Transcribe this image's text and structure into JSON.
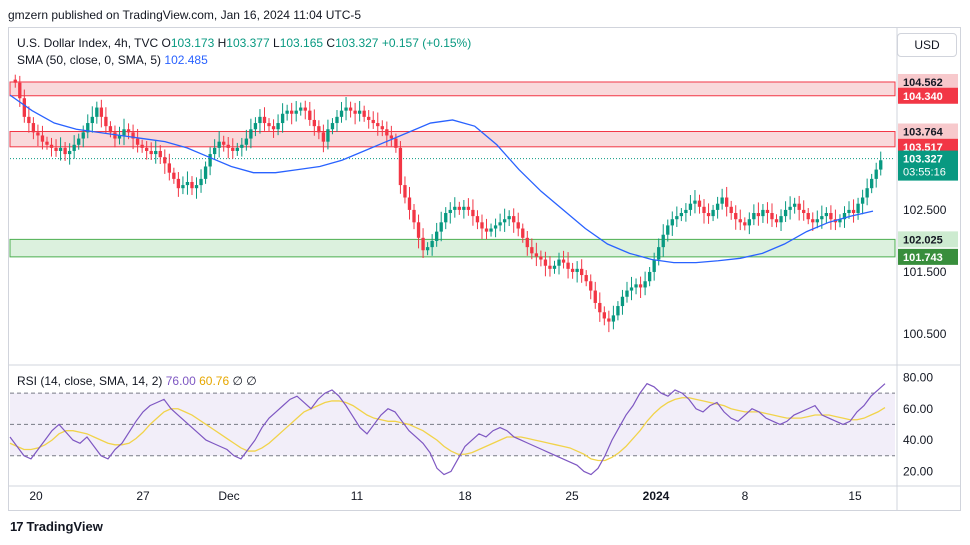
{
  "header": {
    "published": "gmzern published on TradingView.com, Jan 16, 2024 11:04 UTC-5"
  },
  "legend": {
    "symbol": "U.S. Dollar Index, 4h, TVC",
    "o_label": "O",
    "o_value": "103.173",
    "h_label": "H",
    "h_value": "103.377",
    "l_label": "L",
    "l_value": "103.165",
    "c_label": "C",
    "c_value": "103.327",
    "change": "+0.157 (+0.15%)",
    "sma_label": "SMA (50, close, 0, SMA, 5)",
    "sma_value": "102.485",
    "rsi_label": "RSI (14, close, SMA, 14, 2)",
    "rsi_value": "76.00",
    "rsi_sma_value": "60.76",
    "rsi_extra": "∅ ∅"
  },
  "currency_button": "USD",
  "footer": {
    "brand": "TradingView"
  },
  "colors": {
    "up": "#089981",
    "down": "#f23645",
    "sma": "#2962ff",
    "rsi": "#7e57c2",
    "rsi_sma": "#f1d34a",
    "resistance_fill": "#f7c9cc",
    "support_fill": "#cdebd0"
  },
  "chart_data": {
    "type": "candlestick",
    "price_axis": {
      "ticks": [
        100.5,
        101.5,
        102.5
      ],
      "tick_labels": [
        "100.500",
        "101.500",
        "102.500"
      ],
      "range": [
        100.0,
        105.4
      ]
    },
    "zones": [
      {
        "type": "resistance",
        "top": 104.562,
        "bottom": 104.34,
        "top_label": "104.562",
        "bottom_label": "104.340"
      },
      {
        "type": "resistance",
        "top": 103.764,
        "bottom": 103.517,
        "top_label": "103.764",
        "bottom_label": "103.517"
      },
      {
        "type": "support",
        "top": 102.025,
        "bottom": 101.743,
        "top_label": "102.025",
        "bottom_label": "101.743"
      }
    ],
    "last_price": {
      "value": 103.327,
      "label": "103.327",
      "countdown": "03:55:16"
    },
    "x_axis_labels": [
      "20",
      "27",
      "Dec",
      "11",
      "18",
      "25",
      "2024",
      "8",
      "15"
    ],
    "close_series_approx": [
      104.55,
      104.3,
      104.0,
      103.9,
      103.75,
      103.7,
      103.6,
      103.55,
      103.5,
      103.45,
      103.5,
      103.4,
      103.45,
      103.55,
      103.65,
      103.75,
      103.9,
      104.0,
      104.15,
      104.0,
      103.85,
      103.75,
      103.65,
      103.7,
      103.8,
      103.75,
      103.65,
      103.55,
      103.5,
      103.45,
      103.4,
      103.45,
      103.35,
      103.25,
      103.1,
      103.0,
      102.85,
      102.9,
      102.95,
      102.85,
      102.9,
      103.0,
      103.2,
      103.4,
      103.5,
      103.6,
      103.55,
      103.5,
      103.45,
      103.5,
      103.55,
      103.65,
      103.8,
      103.9,
      104.0,
      103.9,
      103.85,
      103.8,
      103.9,
      104.05,
      104.1,
      104.05,
      104.1,
      104.15,
      104.1,
      103.95,
      103.85,
      103.75,
      103.6,
      103.8,
      103.9,
      104.0,
      104.1,
      104.15,
      104.1,
      104.05,
      104.1,
      104.0,
      103.95,
      103.9,
      103.85,
      103.8,
      103.7,
      103.65,
      103.5,
      102.9,
      102.7,
      102.5,
      102.3,
      102.05,
      101.85,
      101.9,
      102.0,
      102.15,
      102.3,
      102.45,
      102.5,
      102.55,
      102.5,
      102.55,
      102.5,
      102.4,
      102.3,
      102.2,
      102.15,
      102.2,
      102.25,
      102.3,
      102.35,
      102.4,
      102.3,
      102.2,
      102.05,
      101.9,
      101.8,
      101.75,
      101.7,
      101.6,
      101.55,
      101.6,
      101.7,
      101.65,
      101.55,
      101.5,
      101.55,
      101.45,
      101.35,
      101.2,
      101.0,
      100.85,
      100.75,
      100.7,
      100.8,
      100.95,
      101.1,
      101.2,
      101.25,
      101.3,
      101.25,
      101.35,
      101.5,
      101.7,
      101.9,
      102.1,
      102.25,
      102.35,
      102.4,
      102.45,
      102.5,
      102.6,
      102.65,
      102.55,
      102.45,
      102.4,
      102.5,
      102.6,
      102.7,
      102.55,
      102.45,
      102.35,
      102.3,
      102.25,
      102.35,
      102.45,
      102.4,
      102.5,
      102.45,
      102.35,
      102.3,
      102.4,
      102.5,
      102.55,
      102.6,
      102.5,
      102.45,
      102.35,
      102.3,
      102.35,
      102.4,
      102.45,
      102.35,
      102.3,
      102.35,
      102.45,
      102.5,
      102.45,
      102.6,
      102.7,
      102.85,
      103.0,
      103.15,
      103.3
    ],
    "sma50_approx": [
      104.35,
      104.1,
      103.9,
      103.8,
      103.75,
      103.7,
      103.65,
      103.6,
      103.5,
      103.35,
      103.2,
      103.1,
      103.1,
      103.15,
      103.2,
      103.3,
      103.45,
      103.6,
      103.75,
      103.9,
      103.95,
      103.85,
      103.55,
      103.15,
      102.8,
      102.5,
      102.2,
      101.95,
      101.8,
      101.7,
      101.65,
      101.65,
      101.68,
      101.72,
      101.8,
      101.95,
      102.15,
      102.3,
      102.4,
      102.48
    ],
    "rsi_axis": {
      "ticks": [
        20,
        40,
        60,
        80
      ],
      "tick_labels": [
        "20.00",
        "40.00",
        "60.00",
        "80.00"
      ],
      "levels": [
        70,
        50,
        30
      ],
      "range": [
        12,
        86
      ]
    },
    "rsi_series_approx": [
      42,
      36,
      30,
      28,
      34,
      40,
      46,
      50,
      45,
      40,
      38,
      42,
      36,
      30,
      28,
      34,
      38,
      45,
      52,
      58,
      62,
      64,
      66,
      60,
      56,
      52,
      48,
      44,
      40,
      38,
      36,
      34,
      30,
      28,
      34,
      40,
      48,
      54,
      58,
      62,
      66,
      68,
      64,
      60,
      66,
      70,
      72,
      68,
      62,
      55,
      48,
      44,
      50,
      56,
      60,
      58,
      52,
      46,
      42,
      38,
      32,
      22,
      18,
      20,
      28,
      36,
      40,
      44,
      42,
      46,
      48,
      46,
      42,
      40,
      38,
      36,
      34,
      32,
      30,
      28,
      26,
      24,
      20,
      18,
      22,
      30,
      40,
      48,
      56,
      62,
      70,
      76,
      74,
      70,
      68,
      72,
      70,
      66,
      60,
      58,
      62,
      64,
      58,
      54,
      52,
      56,
      60,
      58,
      54,
      52,
      50,
      52,
      56,
      58,
      60,
      62,
      56,
      54,
      52,
      50,
      52,
      58,
      62,
      68,
      72,
      76
    ],
    "rsi_sma_approx": [
      38,
      36,
      34,
      34,
      35,
      37,
      40,
      44,
      46,
      46,
      45,
      44,
      42,
      40,
      38,
      37,
      37,
      38,
      41,
      45,
      50,
      54,
      58,
      60,
      60,
      58,
      56,
      53,
      50,
      47,
      44,
      41,
      38,
      35,
      33,
      33,
      35,
      38,
      42,
      46,
      50,
      54,
      58,
      60,
      62,
      64,
      65,
      65,
      64,
      62,
      59,
      56,
      54,
      53,
      52,
      52,
      51,
      50,
      48,
      46,
      43,
      40,
      36,
      33,
      31,
      31,
      32,
      34,
      36,
      38,
      40,
      42,
      42,
      42,
      41,
      40,
      39,
      38,
      37,
      36,
      35,
      33,
      31,
      28,
      27,
      27,
      29,
      32,
      36,
      41,
      46,
      52,
      57,
      61,
      64,
      66,
      67,
      67,
      66,
      65,
      64,
      63,
      62,
      60,
      59,
      58,
      58,
      58,
      57,
      56,
      55,
      54,
      54,
      54,
      55,
      56,
      56,
      56,
      55,
      54,
      53,
      53,
      54,
      56,
      58,
      60.76
    ]
  }
}
